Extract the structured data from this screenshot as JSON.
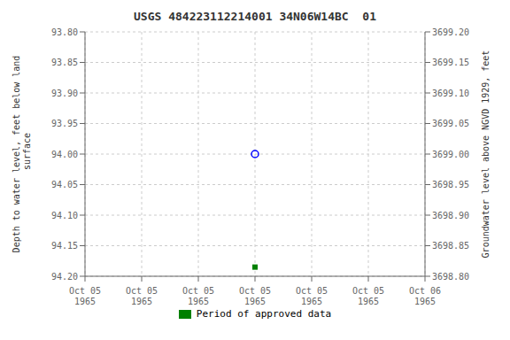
{
  "chart_data": {
    "type": "scatter",
    "title": "USGS 484223112214001 34N06W14BC  01",
    "y_label": "Depth to water level, feet below land\n surface",
    "y2_label": "Groundwater level above NGVD 1929, feet",
    "categories": [
      "Oct 05\n1965",
      "Oct 05\n1965",
      "Oct 05\n1965",
      "Oct 05\n1965",
      "Oct 05\n1965",
      "Oct 05\n1965",
      "Oct 06\n1965"
    ],
    "series": [
      {
        "color": "blue",
        "marker": "circle",
        "values": [
          null,
          null,
          null,
          94.0,
          null,
          null,
          null
        ]
      },
      {
        "name": "Period of approved data",
        "color": "#008000",
        "marker": "square",
        "values": [
          null,
          null,
          null,
          94.185,
          null,
          null,
          null
        ]
      }
    ],
    "ylim": [
      94.2,
      93.8
    ],
    "yticks": [
      {
        "value": 93.8,
        "label": "93.80"
      },
      93.85,
      {
        "value": 93.9,
        "label": "93.90"
      },
      93.95,
      {
        "value": 94,
        "label": "94.00"
      },
      94.05,
      {
        "value": 94.1,
        "label": "94.10"
      },
      94.15,
      {
        "value": 94.2,
        "label": "94.20"
      }
    ],
    "y2lim": [
      3698.8,
      3699.2
    ],
    "y2ticks": [
      {
        "value": 3699.2,
        "label": "3699.20"
      },
      3699.15,
      {
        "value": 3699.1,
        "label": "3699.10"
      },
      3699.05,
      {
        "value": 3699,
        "label": "3699.00"
      },
      3698.95,
      {
        "value": 3698.9,
        "label": "3698.90"
      },
      3698.85,
      {
        "value": 3698.8,
        "label": "3698.80"
      }
    ],
    "grid": true,
    "legend": "bottom"
  }
}
